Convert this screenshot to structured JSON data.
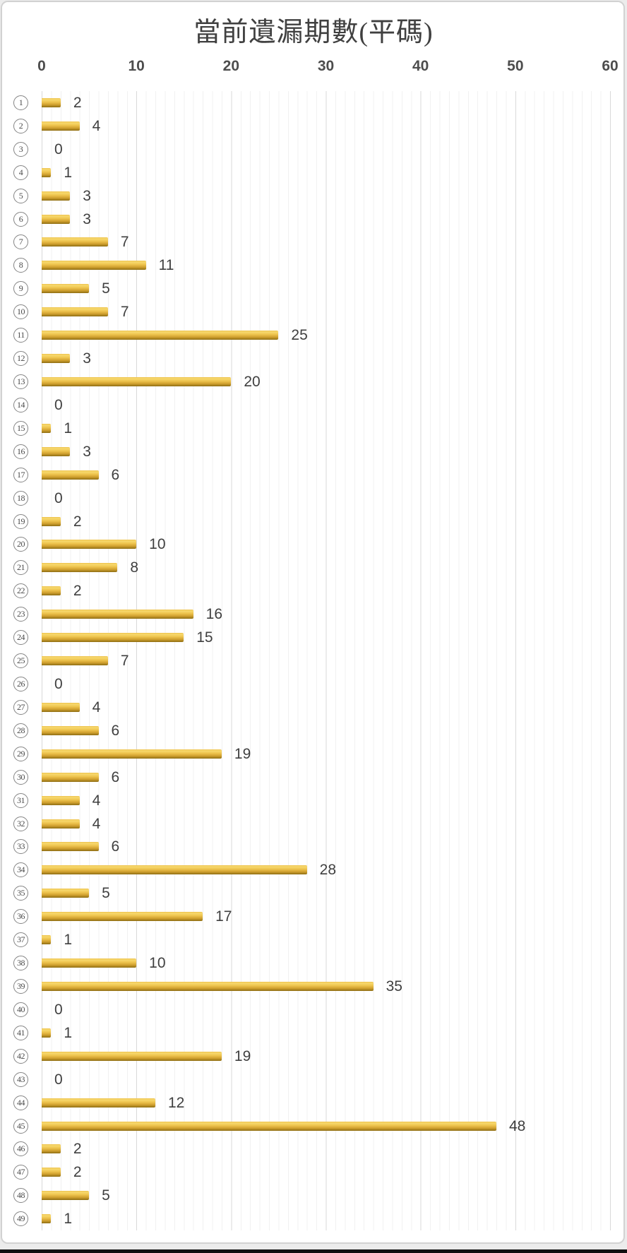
{
  "chart_data": {
    "type": "bar",
    "orientation": "horizontal",
    "title": "當前遺漏期數(平碼)",
    "categories": [
      1,
      2,
      3,
      4,
      5,
      6,
      7,
      8,
      9,
      10,
      11,
      12,
      13,
      14,
      15,
      16,
      17,
      18,
      19,
      20,
      21,
      22,
      23,
      24,
      25,
      26,
      27,
      28,
      29,
      30,
      31,
      32,
      33,
      34,
      35,
      36,
      37,
      38,
      39,
      40,
      41,
      42,
      43,
      44,
      45,
      46,
      47,
      48,
      49
    ],
    "category_style": "circled-number-outline",
    "values": [
      2,
      4,
      0,
      1,
      3,
      3,
      7,
      11,
      5,
      7,
      25,
      3,
      20,
      0,
      1,
      3,
      6,
      0,
      2,
      10,
      8,
      2,
      16,
      15,
      7,
      0,
      4,
      6,
      19,
      6,
      4,
      4,
      6,
      28,
      5,
      17,
      1,
      10,
      35,
      0,
      1,
      19,
      0,
      12,
      48,
      2,
      2,
      5,
      1
    ],
    "xlabel": "",
    "ylabel": "",
    "xlim": [
      0,
      60
    ],
    "x_ticks": [
      0,
      10,
      20,
      30,
      40,
      50,
      60
    ],
    "grid": {
      "minor_step": 1,
      "major_step": 10,
      "minor_color": "#F1F1F1",
      "major_color": "#D9D9D9"
    },
    "legend": "none",
    "value_labels": "at bar end",
    "bar_gradient": [
      "#EDC24D",
      "#F7D96E",
      "#EEC44E",
      "#CF9F2E",
      "#8E6E13"
    ],
    "bar_base_color": "#E8BC42"
  },
  "colors": {
    "title_text": "#404040",
    "tick_text": "#4D4D4D",
    "value_text": "#3F3F3F",
    "category_circle": "#848484",
    "frame_border": "#D2D2D2",
    "background": "#FFFFFF",
    "bottom_strip": "#101010"
  }
}
